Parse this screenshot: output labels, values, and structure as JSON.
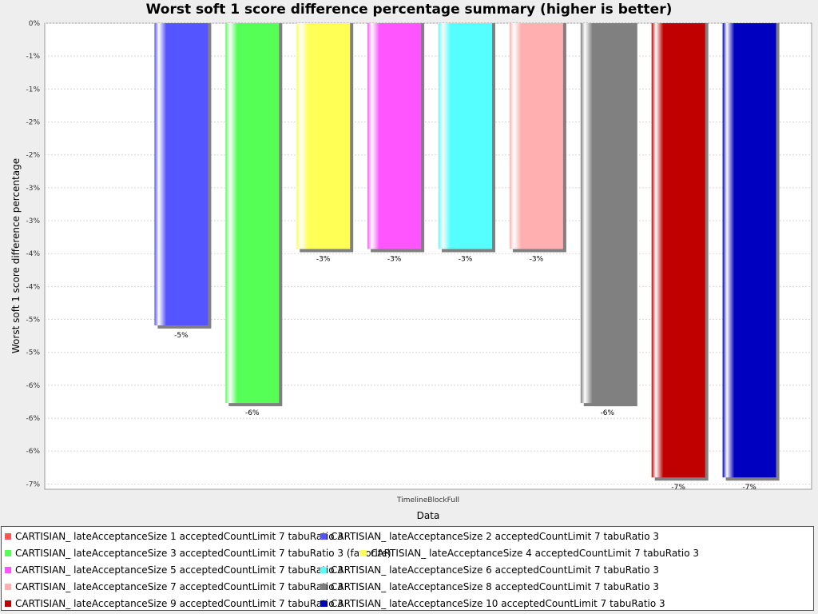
{
  "chart_data": {
    "type": "bar",
    "title": "Worst soft 1 score difference percentage summary (higher is better)",
    "xlabel": "Data",
    "ylabel": "Worst soft 1 score difference percentage",
    "categories": [
      "TimelineBlockFull"
    ],
    "ylim": [
      -7.08,
      0
    ],
    "y_tick_values": [
      0,
      -0.5,
      -1,
      -1.5,
      -2,
      -2.5,
      -3,
      -3.5,
      -4,
      -4.5,
      -5,
      -5.5,
      -6,
      -6.5,
      -7
    ],
    "y_tick_labels": [
      "0%",
      "-1%",
      "-1%",
      "-2%",
      "-2%",
      "-3%",
      "-3%",
      "-4%",
      "-4%",
      "-5%",
      "-5%",
      "-6%",
      "-6%",
      "-6%",
      "-7%"
    ],
    "grid": true,
    "legend_position": "bottom",
    "series": [
      {
        "name": "CARTISIAN_ lateAcceptanceSize 1 acceptedCountLimit 7 tabuRatio 3",
        "values": [
          0
        ],
        "label": "",
        "color": "#ff5555"
      },
      {
        "name": "CARTISIAN_ lateAcceptanceSize 2 acceptedCountLimit 7 tabuRatio 3",
        "values": [
          -4.59
        ],
        "label": "-5%",
        "color": "#5555ff"
      },
      {
        "name": "CARTISIAN_ lateAcceptanceSize 3 acceptedCountLimit 7 tabuRatio 3 (favorite)",
        "values": [
          -5.77
        ],
        "label": "-6%",
        "color": "#55ff55"
      },
      {
        "name": "CARTISIAN_ lateAcceptanceSize 4 acceptedCountLimit 7 tabuRatio 3",
        "values": [
          -3.43
        ],
        "label": "-3%",
        "color": "#ffff55"
      },
      {
        "name": "CARTISIAN_ lateAcceptanceSize 5 acceptedCountLimit 7 tabuRatio 3",
        "values": [
          -3.43
        ],
        "label": "-3%",
        "color": "#ff55ff"
      },
      {
        "name": "CARTISIAN_ lateAcceptanceSize 6 acceptedCountLimit 7 tabuRatio 3",
        "values": [
          -3.43
        ],
        "label": "-3%",
        "color": "#55ffff"
      },
      {
        "name": "CARTISIAN_ lateAcceptanceSize 7 acceptedCountLimit 7 tabuRatio 3",
        "values": [
          -3.43
        ],
        "label": "-3%",
        "color": "#ffafaf"
      },
      {
        "name": "CARTISIAN_ lateAcceptanceSize 8 acceptedCountLimit 7 tabuRatio 3",
        "values": [
          -5.77
        ],
        "label": "-6%",
        "color": "#808080"
      },
      {
        "name": "CARTISIAN_ lateAcceptanceSize 9 acceptedCountLimit 7 tabuRatio 3",
        "values": [
          -6.9
        ],
        "label": "-7%",
        "color": "#c00000"
      },
      {
        "name": "CARTISIAN_ lateAcceptanceSize 10 acceptedCountLimit 7 tabuRatio 3",
        "values": [
          -6.9
        ],
        "label": "-7%",
        "color": "#0000c0"
      }
    ]
  }
}
